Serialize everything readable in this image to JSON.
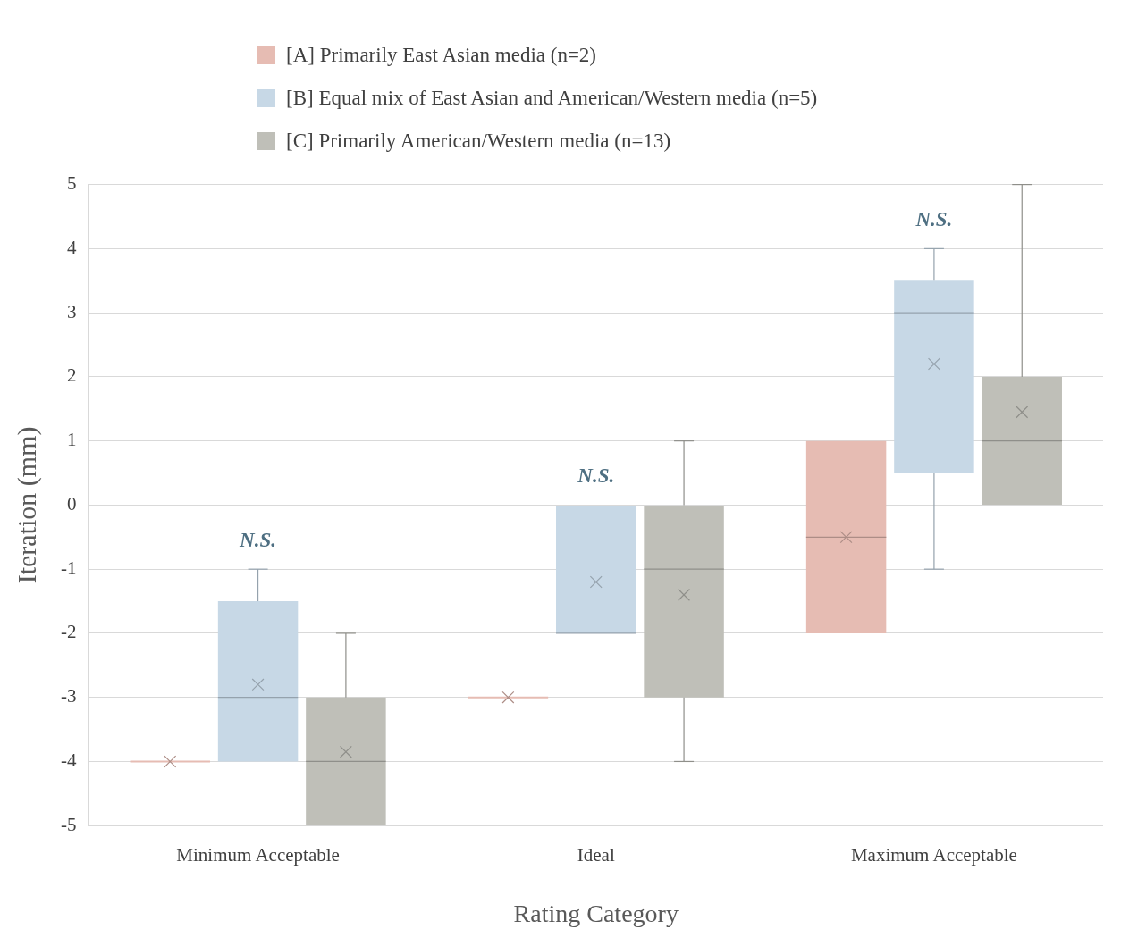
{
  "chart_data": {
    "type": "box",
    "xlabel": "Rating Category",
    "ylabel": "Iteration (mm)",
    "categories": [
      "Minimum Acceptable",
      "Ideal",
      "Maximum Acceptable"
    ],
    "ylim": [
      -5,
      5
    ],
    "yticks": [
      -5,
      -4,
      -3,
      -2,
      -1,
      0,
      1,
      2,
      3,
      4,
      5
    ],
    "grid": "y",
    "legend": "top",
    "marker": "cross",
    "series": [
      {
        "name": "[A] Primarily East Asian media (n=2)",
        "color": "#e6bcb3",
        "boxes": [
          {
            "low": -4,
            "q1": -4,
            "median": -4,
            "q3": -4,
            "high": -4,
            "mean": -4
          },
          {
            "low": -3,
            "q1": -3,
            "median": -3,
            "q3": -3,
            "high": -3,
            "mean": -3
          },
          {
            "low": -2,
            "q1": -2,
            "median": -0.5,
            "q3": 1,
            "high": 1,
            "mean": -0.5
          }
        ]
      },
      {
        "name": "[B] Equal mix of East Asian and American/Western media (n=5)",
        "color": "#c7d8e6",
        "boxes": [
          {
            "low": -4,
            "q1": -4,
            "median": -3,
            "q3": -1.5,
            "high": -1,
            "mean": -2.8
          },
          {
            "low": -2,
            "q1": -2,
            "median": -2,
            "q3": 0,
            "high": 0,
            "mean": -1.2
          },
          {
            "low": -1,
            "q1": 0.5,
            "median": 3,
            "q3": 3.5,
            "high": 4,
            "mean": 2.2
          }
        ]
      },
      {
        "name": "[C] Primarily American/Western media (n=13)",
        "color": "#bfbfb8",
        "boxes": [
          {
            "low": -5,
            "q1": -5,
            "median": -4,
            "q3": -3,
            "high": -2,
            "mean": -3.85
          },
          {
            "low": -4,
            "q1": -3,
            "median": -1,
            "q3": 0,
            "high": 1,
            "mean": -1.4
          },
          {
            "low": 0,
            "q1": 0,
            "median": 1,
            "q3": 2,
            "high": 5,
            "mean": 1.45
          }
        ]
      }
    ],
    "annotations": [
      "N.S.",
      "N.S.",
      "N.S."
    ]
  }
}
